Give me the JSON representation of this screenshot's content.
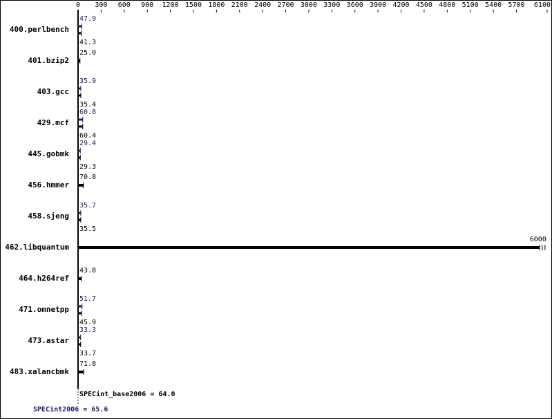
{
  "chart_data": {
    "type": "bar",
    "orientation": "horizontal",
    "categories": [
      "400.perlbench",
      "401.bzip2",
      "403.gcc",
      "429.mcf",
      "445.gobmk",
      "456.hmmer",
      "458.sjeng",
      "462.libquantum",
      "464.h264ref",
      "471.omnetpp",
      "473.astar",
      "483.xalancbmk"
    ],
    "series": [
      {
        "role": "peak",
        "color": "#191970",
        "values": [
          47.9,
          null,
          35.9,
          60.8,
          29.4,
          null,
          35.7,
          null,
          null,
          51.7,
          33.3,
          null
        ],
        "value_labels": [
          "47.9",
          null,
          "35.9",
          "60.8",
          "29.4",
          null,
          "35.7",
          null,
          null,
          "51.7",
          "33.3",
          null
        ]
      },
      {
        "role": "base",
        "color": "#000000",
        "values": [
          41.3,
          25.0,
          35.4,
          60.4,
          29.3,
          70.8,
          35.5,
          6000,
          43.8,
          45.9,
          33.7,
          71.8
        ],
        "value_labels": [
          "41.3",
          "25.0",
          "35.4",
          "60.4",
          "29.3",
          "70.8",
          "35.5",
          "6000",
          "43.8",
          "45.9",
          "33.7",
          "71.8"
        ]
      }
    ],
    "xlim": [
      0,
      6100
    ],
    "xticks": [
      0,
      300,
      600,
      900,
      1200,
      1500,
      1800,
      2100,
      2400,
      2700,
      3000,
      3300,
      3600,
      3900,
      4200,
      4500,
      4800,
      5100,
      5400,
      5700,
      6100
    ],
    "annotations": [
      "SPECint_base2006 = 64.0",
      "SPECint2006 = 65.6"
    ]
  }
}
